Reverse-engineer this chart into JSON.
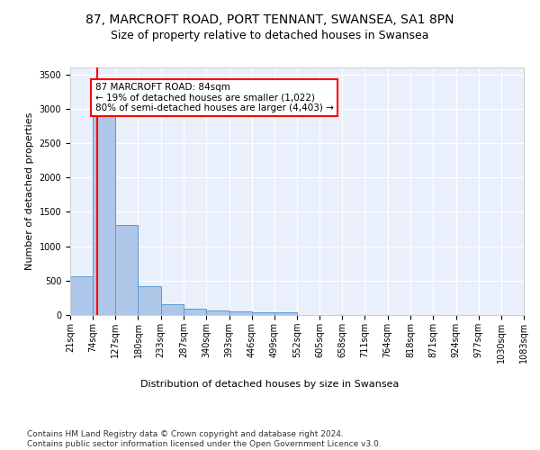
{
  "title_line1": "87, MARCROFT ROAD, PORT TENNANT, SWANSEA, SA1 8PN",
  "title_line2": "Size of property relative to detached houses in Swansea",
  "xlabel": "Distribution of detached houses by size in Swansea",
  "ylabel": "Number of detached properties",
  "footnote": "Contains HM Land Registry data © Crown copyright and database right 2024.\nContains public sector information licensed under the Open Government Licence v3.0.",
  "annotation_title": "87 MARCROFT ROAD: 84sqm",
  "annotation_line2": "← 19% of detached houses are smaller (1,022)",
  "annotation_line3": "80% of semi-detached houses are larger (4,403) →",
  "bar_edges": [
    21,
    74,
    127,
    180,
    233,
    287,
    340,
    393,
    446,
    499,
    552,
    605,
    658,
    711,
    764,
    818,
    871,
    924,
    977,
    1030,
    1083
  ],
  "bar_heights": [
    560,
    2920,
    1310,
    415,
    155,
    90,
    60,
    55,
    45,
    40,
    0,
    0,
    0,
    0,
    0,
    0,
    0,
    0,
    0,
    0
  ],
  "bar_color": "#aec6e8",
  "bar_edgecolor": "#5b9bd5",
  "property_line_x": 84,
  "ylim": [
    0,
    3600
  ],
  "yticks": [
    0,
    500,
    1000,
    1500,
    2000,
    2500,
    3000,
    3500
  ],
  "bg_color": "#eaf0fb",
  "grid_color": "#ffffff",
  "title_fontsize": 10,
  "subtitle_fontsize": 9,
  "axis_label_fontsize": 8,
  "tick_fontsize": 7,
  "footnote_fontsize": 6.5
}
